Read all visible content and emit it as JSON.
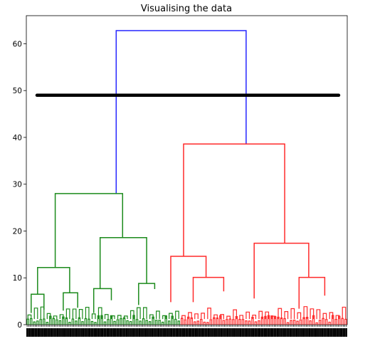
{
  "chart_data": {
    "type": "dendrogram",
    "title": "Visualising the data",
    "xlabel": "",
    "ylabel": "",
    "ylim": [
      0,
      66
    ],
    "yticks": [
      0,
      10,
      20,
      30,
      40,
      50,
      60
    ],
    "grid": false,
    "leaf_count": 200,
    "threshold_line": {
      "y": 49,
      "color": "#000000"
    },
    "colors": {
      "cluster_a": "#1b8a1b",
      "cluster_b": "#ff2a2a",
      "root": "#2626ff",
      "axis": "#000000"
    },
    "links": [
      {
        "x": [
          0.28,
          0.28,
          0.685,
          0.685
        ],
        "y": [
          28.0,
          62.8,
          62.8,
          38.6
        ],
        "color": "root"
      },
      {
        "x": [
          0.09,
          0.09,
          0.3,
          0.3
        ],
        "y": [
          12.2,
          28.0,
          28.0,
          18.6
        ],
        "color": "cluster_a"
      },
      {
        "x": [
          0.035,
          0.035,
          0.135,
          0.135
        ],
        "y": [
          6.5,
          12.2,
          12.2,
          6.8
        ],
        "color": "cluster_a"
      },
      {
        "x": [
          0.015,
          0.015,
          0.055,
          0.055
        ],
        "y": [
          2.5,
          6.5,
          6.5,
          3.2
        ],
        "color": "cluster_a"
      },
      {
        "x": [
          0.115,
          0.115,
          0.16,
          0.16
        ],
        "y": [
          3.0,
          6.8,
          6.8,
          3.6
        ],
        "color": "cluster_a"
      },
      {
        "x": [
          0.23,
          0.23,
          0.375,
          0.375
        ],
        "y": [
          7.7,
          18.6,
          18.6,
          8.8
        ],
        "color": "cluster_a"
      },
      {
        "x": [
          0.21,
          0.21,
          0.265,
          0.265
        ],
        "y": [
          2.5,
          7.7,
          7.7,
          5.2
        ],
        "color": "cluster_a"
      },
      {
        "x": [
          0.35,
          0.35,
          0.4,
          0.4
        ],
        "y": [
          4.2,
          8.8,
          8.8,
          7.6
        ],
        "color": "cluster_a"
      },
      {
        "x": [
          0.49,
          0.49,
          0.805,
          0.805
        ],
        "y": [
          14.6,
          38.6,
          38.6,
          17.4
        ],
        "color": "cluster_b"
      },
      {
        "x": [
          0.45,
          0.45,
          0.56,
          0.56
        ],
        "y": [
          4.8,
          14.6,
          14.6,
          10.1
        ],
        "color": "cluster_b"
      },
      {
        "x": [
          0.52,
          0.52,
          0.615,
          0.615
        ],
        "y": [
          4.8,
          10.1,
          10.1,
          7.1
        ],
        "color": "cluster_b"
      },
      {
        "x": [
          0.71,
          0.71,
          0.88,
          0.88
        ],
        "y": [
          5.6,
          17.4,
          17.4,
          10.1
        ],
        "color": "cluster_b"
      },
      {
        "x": [
          0.85,
          0.85,
          0.93,
          0.93
        ],
        "y": [
          3.4,
          10.1,
          10.1,
          6.2
        ],
        "color": "cluster_b"
      }
    ]
  }
}
